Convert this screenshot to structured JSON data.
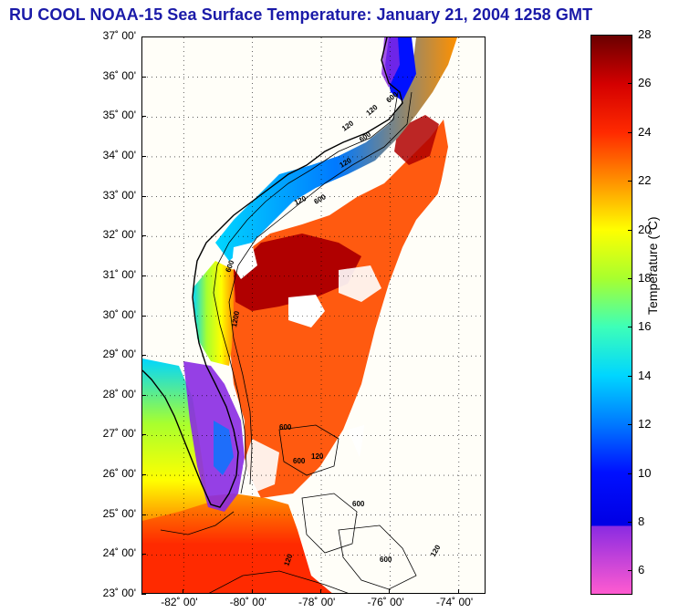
{
  "title": "RU COOL  NOAA-15  Sea Surface Temperature:  January 21, 2004 1258 GMT",
  "map": {
    "lat_labels": [
      "37˚ 00'",
      "36˚ 00'",
      "35˚ 00'",
      "34˚ 00'",
      "33˚ 00'",
      "32˚ 00'",
      "31˚ 00'",
      "30˚ 00'",
      "29˚ 00'",
      "28˚ 00'",
      "27˚ 00'",
      "26˚ 00'",
      "25˚ 00'",
      "24˚ 00'",
      "23˚ 00'"
    ],
    "lon_labels": [
      "-82˚ 00'",
      "-80˚ 00'",
      "-78˚ 00'",
      "-76˚ 00'",
      "-74˚ 00'"
    ],
    "lat_range": [
      23,
      37
    ],
    "lon_range": [
      -83.2,
      -73.2
    ],
    "isobath_labels": [
      "120",
      "600",
      "120",
      "600",
      "120",
      "600",
      "120",
      "600",
      "1200",
      "600",
      "600",
      "120",
      "600",
      "120",
      "600",
      "120"
    ]
  },
  "colorbar": {
    "label": "Temperature (°C)",
    "ticks": [
      "28",
      "26",
      "24",
      "22",
      "20",
      "18",
      "16",
      "14",
      "12",
      "10",
      "8",
      "6"
    ],
    "range": [
      5,
      28
    ],
    "colors": {
      "c28": "#6a0000",
      "c26": "#d40000",
      "c24": "#ff2a00",
      "c22": "#ff9100",
      "c20": "#ffff00",
      "c18": "#a8ff2e",
      "c16": "#3dffb8",
      "c14": "#00d6ff",
      "c12": "#0079ff",
      "c10": "#0010ff",
      "c8": "#0000e6",
      "c7": "#8a2be2",
      "c5": "#ff5bd0"
    }
  }
}
